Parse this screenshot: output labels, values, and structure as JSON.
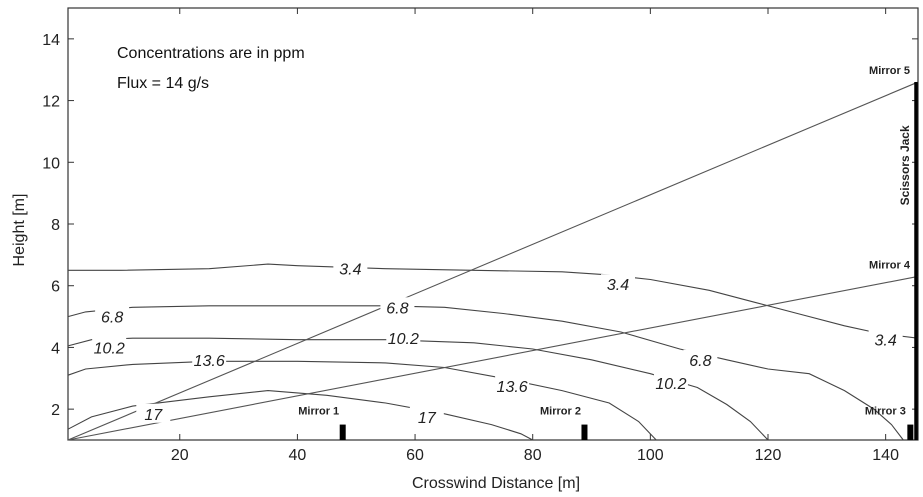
{
  "chart_data": {
    "type": "contour",
    "xlabel": "Crosswind Distance [m]",
    "ylabel": "Height [m]",
    "xlim": [
      1,
      145.5
    ],
    "ylim": [
      1,
      15
    ],
    "xticks": [
      20,
      40,
      60,
      80,
      100,
      120,
      140
    ],
    "yticks": [
      2,
      4,
      6,
      8,
      10,
      12,
      14
    ],
    "annotations": [
      "Concentrations are in ppm",
      "Flux = 14 g/s"
    ],
    "contours": [
      {
        "level": "3.4",
        "points": [
          [
            1,
            6.5
          ],
          [
            10,
            6.5
          ],
          [
            25,
            6.55
          ],
          [
            35,
            6.7
          ],
          [
            40,
            6.65
          ],
          [
            55,
            6.55
          ],
          [
            70,
            6.5
          ],
          [
            85,
            6.45
          ],
          [
            93,
            6.35
          ],
          [
            100,
            6.2
          ],
          [
            110,
            5.85
          ],
          [
            118,
            5.45
          ],
          [
            125,
            5.1
          ],
          [
            133,
            4.7
          ],
          [
            139,
            4.45
          ],
          [
            145.5,
            4.3
          ]
        ],
        "labels": [
          {
            "text": "3.4",
            "x": 49,
            "y": 6.55
          },
          {
            "text": "3.4",
            "x": 94.5,
            "y": 6.05
          },
          {
            "text": "3.4",
            "x": 140,
            "y": 4.25
          }
        ]
      },
      {
        "level": "6.8",
        "points": [
          [
            1,
            5.0
          ],
          [
            4,
            5.15
          ],
          [
            12,
            5.3
          ],
          [
            25,
            5.35
          ],
          [
            40,
            5.35
          ],
          [
            55,
            5.35
          ],
          [
            65,
            5.3
          ],
          [
            75,
            5.1
          ],
          [
            85,
            4.85
          ],
          [
            95,
            4.5
          ],
          [
            105,
            3.95
          ],
          [
            113,
            3.6
          ],
          [
            120,
            3.3
          ],
          [
            127,
            3.15
          ],
          [
            133,
            2.6
          ],
          [
            138,
            2.0
          ],
          [
            141,
            1.5
          ],
          [
            143,
            1.0
          ]
        ],
        "labels": [
          {
            "text": "6.8",
            "x": 8.5,
            "y": 5.0
          },
          {
            "text": "6.8",
            "x": 57,
            "y": 5.3
          },
          {
            "text": "6.8",
            "x": 108.5,
            "y": 3.6
          }
        ]
      },
      {
        "level": "10.2",
        "points": [
          [
            1,
            4.05
          ],
          [
            5,
            4.25
          ],
          [
            12,
            4.3
          ],
          [
            25,
            4.3
          ],
          [
            40,
            4.25
          ],
          [
            55,
            4.25
          ],
          [
            70,
            4.15
          ],
          [
            80,
            3.95
          ],
          [
            90,
            3.6
          ],
          [
            100,
            3.15
          ],
          [
            108,
            2.7
          ],
          [
            113,
            2.15
          ],
          [
            117,
            1.6
          ],
          [
            120,
            1.0
          ]
        ],
        "labels": [
          {
            "text": "10.2",
            "x": 8,
            "y": 4.0
          },
          {
            "text": "10.2",
            "x": 58,
            "y": 4.3
          },
          {
            "text": "10.2",
            "x": 103.5,
            "y": 2.85
          }
        ]
      },
      {
        "level": "13.6",
        "points": [
          [
            1,
            3.1
          ],
          [
            4,
            3.3
          ],
          [
            12,
            3.45
          ],
          [
            25,
            3.55
          ],
          [
            40,
            3.55
          ],
          [
            55,
            3.5
          ],
          [
            65,
            3.35
          ],
          [
            75,
            3.0
          ],
          [
            85,
            2.6
          ],
          [
            93,
            2.2
          ],
          [
            98,
            1.6
          ],
          [
            101,
            1.0
          ]
        ],
        "labels": [
          {
            "text": "13.6",
            "x": 25,
            "y": 3.6
          },
          {
            "text": "13.6",
            "x": 76.5,
            "y": 2.75
          }
        ]
      },
      {
        "level": "17",
        "points": [
          [
            1,
            1.35
          ],
          [
            5,
            1.75
          ],
          [
            12,
            2.1
          ],
          [
            25,
            2.4
          ],
          [
            35,
            2.6
          ],
          [
            45,
            2.45
          ],
          [
            55,
            2.2
          ],
          [
            65,
            1.85
          ],
          [
            73,
            1.5
          ],
          [
            78,
            1.2
          ],
          [
            80,
            1.0
          ]
        ],
        "labels": [
          {
            "text": "17",
            "x": 15.5,
            "y": 1.85
          },
          {
            "text": "17",
            "x": 62,
            "y": 1.75
          }
        ]
      }
    ],
    "beams": [
      {
        "from": [
          1,
          1.0
        ],
        "to": [
          145.5,
          12.6
        ]
      },
      {
        "from": [
          1,
          1.0
        ],
        "to": [
          145.5,
          6.3
        ]
      }
    ],
    "mirrors": [
      {
        "name": "Mirror 1",
        "x": 47.7,
        "height": 0.5
      },
      {
        "name": "Mirror 2",
        "x": 88.8,
        "height": 0.5
      },
      {
        "name": "Mirror 3",
        "x": 144.2,
        "height": 0.5
      },
      {
        "name": "Mirror 4",
        "x": 145.5,
        "y": 6.3
      },
      {
        "name": "Mirror 5",
        "x": 145.5,
        "y": 12.6
      }
    ],
    "jack": {
      "name": "Scissors Jack",
      "x": 145.5,
      "top": 12.6
    }
  }
}
